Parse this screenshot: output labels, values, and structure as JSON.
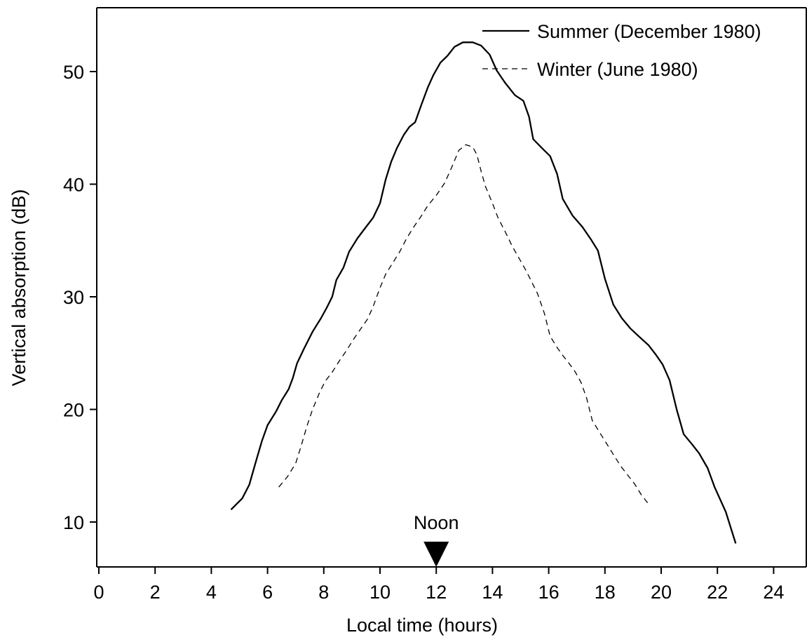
{
  "chart_data": {
    "type": "line",
    "xlabel": "Local time (hours)",
    "ylabel": "Vertical absorption (dB)",
    "xlim": [
      0,
      25
    ],
    "ylim": [
      6,
      56
    ],
    "x_ticks": [
      0,
      2,
      4,
      6,
      8,
      10,
      12,
      14,
      16,
      18,
      20,
      22,
      24
    ],
    "y_ticks": [
      10,
      20,
      30,
      40,
      50
    ],
    "legend_position": "top-right",
    "grid": false,
    "annotation": {
      "label": "Noon",
      "x": 12,
      "marker": "filled-down-triangle"
    },
    "series": [
      {
        "name": "Summer (December 1980)",
        "style": "solid",
        "color": "#000000",
        "points": [
          [
            4.7,
            11.1
          ],
          [
            5.1,
            12.1
          ],
          [
            5.35,
            13.3
          ],
          [
            5.6,
            15.5
          ],
          [
            5.8,
            17.2
          ],
          [
            6.0,
            18.6
          ],
          [
            6.3,
            19.8
          ],
          [
            6.5,
            20.8
          ],
          [
            6.75,
            21.8
          ],
          [
            6.9,
            22.8
          ],
          [
            7.05,
            24.1
          ],
          [
            7.3,
            25.4
          ],
          [
            7.6,
            26.9
          ],
          [
            7.9,
            28.1
          ],
          [
            8.1,
            29.0
          ],
          [
            8.3,
            30.0
          ],
          [
            8.45,
            31.5
          ],
          [
            8.7,
            32.6
          ],
          [
            8.9,
            34.0
          ],
          [
            9.2,
            35.2
          ],
          [
            9.5,
            36.2
          ],
          [
            9.75,
            37.0
          ],
          [
            10.0,
            38.3
          ],
          [
            10.2,
            40.4
          ],
          [
            10.4,
            42.0
          ],
          [
            10.6,
            43.2
          ],
          [
            10.85,
            44.4
          ],
          [
            11.05,
            45.1
          ],
          [
            11.25,
            45.5
          ],
          [
            11.45,
            46.9
          ],
          [
            11.7,
            48.6
          ],
          [
            11.9,
            49.7
          ],
          [
            12.15,
            50.8
          ],
          [
            12.4,
            51.4
          ],
          [
            12.65,
            52.2
          ],
          [
            12.95,
            52.6
          ],
          [
            13.3,
            52.6
          ],
          [
            13.6,
            52.3
          ],
          [
            13.9,
            51.5
          ],
          [
            14.15,
            50.1
          ],
          [
            14.45,
            49.0
          ],
          [
            14.8,
            47.9
          ],
          [
            15.1,
            47.4
          ],
          [
            15.3,
            46.0
          ],
          [
            15.45,
            44.0
          ],
          [
            15.8,
            43.1
          ],
          [
            16.05,
            42.5
          ],
          [
            16.3,
            40.9
          ],
          [
            16.5,
            38.7
          ],
          [
            16.85,
            37.2
          ],
          [
            17.2,
            36.2
          ],
          [
            17.5,
            35.1
          ],
          [
            17.75,
            34.1
          ],
          [
            18.0,
            31.6
          ],
          [
            18.3,
            29.3
          ],
          [
            18.6,
            28.1
          ],
          [
            18.9,
            27.2
          ],
          [
            19.2,
            26.5
          ],
          [
            19.55,
            25.7
          ],
          [
            19.8,
            24.9
          ],
          [
            20.05,
            24.0
          ],
          [
            20.3,
            22.6
          ],
          [
            20.55,
            20.0
          ],
          [
            20.8,
            17.8
          ],
          [
            21.1,
            16.9
          ],
          [
            21.35,
            16.1
          ],
          [
            21.65,
            14.8
          ],
          [
            21.9,
            13.1
          ],
          [
            22.3,
            10.9
          ],
          [
            22.65,
            8.1
          ]
        ]
      },
      {
        "name": "Winter (June 1980)",
        "style": "dashed",
        "color": "#000000",
        "points": [
          [
            6.4,
            13.1
          ],
          [
            6.7,
            14.0
          ],
          [
            7.0,
            15.2
          ],
          [
            7.2,
            16.8
          ],
          [
            7.4,
            18.5
          ],
          [
            7.6,
            20.0
          ],
          [
            7.85,
            21.5
          ],
          [
            8.05,
            22.5
          ],
          [
            8.3,
            23.3
          ],
          [
            8.55,
            24.3
          ],
          [
            8.8,
            25.2
          ],
          [
            9.05,
            26.2
          ],
          [
            9.3,
            27.1
          ],
          [
            9.55,
            28.0
          ],
          [
            9.75,
            29.1
          ],
          [
            10.0,
            30.8
          ],
          [
            10.2,
            32.0
          ],
          [
            10.45,
            33.0
          ],
          [
            10.7,
            34.0
          ],
          [
            10.95,
            35.2
          ],
          [
            11.2,
            36.2
          ],
          [
            11.45,
            37.1
          ],
          [
            11.7,
            38.1
          ],
          [
            12.0,
            39.0
          ],
          [
            12.3,
            40.1
          ],
          [
            12.55,
            41.5
          ],
          [
            12.8,
            43.0
          ],
          [
            13.05,
            43.5
          ],
          [
            13.3,
            43.3
          ],
          [
            13.45,
            42.6
          ],
          [
            13.6,
            41.1
          ],
          [
            13.75,
            39.8
          ],
          [
            14.0,
            38.3
          ],
          [
            14.2,
            37.0
          ],
          [
            14.45,
            35.8
          ],
          [
            14.7,
            34.5
          ],
          [
            14.95,
            33.4
          ],
          [
            15.2,
            32.3
          ],
          [
            15.4,
            31.3
          ],
          [
            15.6,
            30.3
          ],
          [
            15.85,
            28.5
          ],
          [
            16.05,
            26.5
          ],
          [
            16.3,
            25.5
          ],
          [
            16.5,
            24.8
          ],
          [
            16.75,
            24.0
          ],
          [
            16.95,
            23.3
          ],
          [
            17.15,
            22.4
          ],
          [
            17.35,
            21.0
          ],
          [
            17.55,
            19.0
          ],
          [
            17.8,
            18.0
          ],
          [
            18.05,
            17.0
          ],
          [
            18.3,
            16.0
          ],
          [
            18.55,
            15.0
          ],
          [
            18.8,
            14.2
          ],
          [
            19.05,
            13.4
          ],
          [
            19.3,
            12.4
          ],
          [
            19.55,
            11.6
          ]
        ]
      }
    ]
  }
}
